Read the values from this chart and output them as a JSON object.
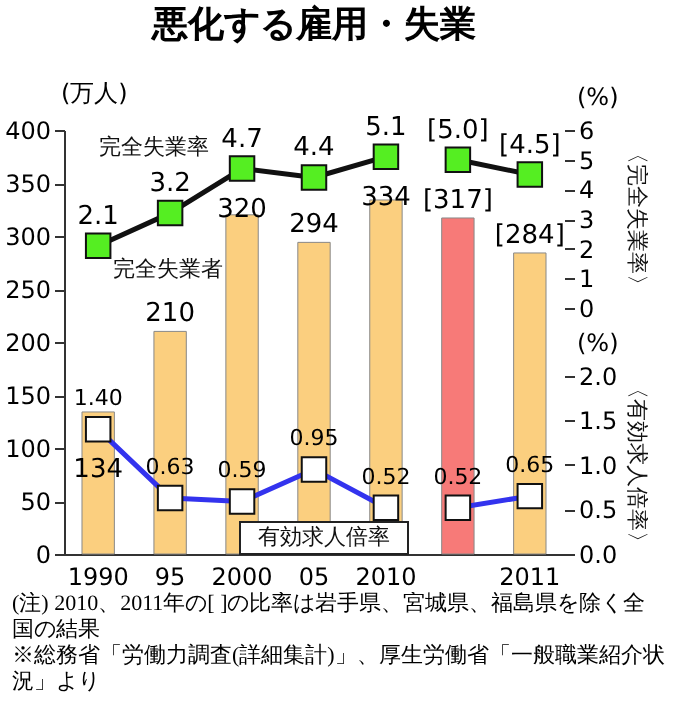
{
  "chart_data": {
    "type": "bar",
    "title": "悪化する雇用・失業",
    "categories": [
      "1990",
      "95",
      "2000",
      "05",
      "2010",
      null,
      "2011"
    ],
    "ylabel": "(万人)",
    "ylim": [
      0,
      400
    ],
    "yticks": [
      0,
      50,
      100,
      150,
      200,
      250,
      300,
      350,
      400
    ],
    "y2label": "(%)",
    "y2lim": [
      0,
      6
    ],
    "y2ticks": [
      0,
      1,
      2,
      3,
      4,
      5,
      6
    ],
    "y3label": "(%)",
    "y3lim": [
      0,
      2.0
    ],
    "y3ticks": [
      {
        "value": 0,
        "label": "0.0"
      },
      {
        "value": 0.5,
        "label": "0.5"
      },
      {
        "value": 1,
        "label": "1.0"
      },
      {
        "value": 1.5,
        "label": "1.5"
      },
      {
        "value": 2,
        "label": "2.0"
      }
    ],
    "series": [
      {
        "name": "完全失業者",
        "colors": [
          "#fbcf7f",
          "#fbcf7f",
          "#fbcf7f",
          "#fbcf7f",
          "#fbcf7f",
          "#f77a78",
          "#fbcf7f"
        ],
        "values": [
          134,
          210,
          320,
          294,
          334,
          317,
          284
        ],
        "value_labels": [
          "134",
          "210",
          "320",
          "294",
          "334",
          "[317]",
          "[284]"
        ]
      },
      {
        "name": "完全失業率",
        "type": "line",
        "axis": "y2",
        "color": "#55ee22",
        "marker": "square",
        "values": [
          2.1,
          3.2,
          4.7,
          4.4,
          5.1,
          null,
          null
        ],
        "value_labels": [
          "2.1",
          "3.2",
          "4.7",
          "4.4",
          "5.1",
          null,
          null
        ]
      },
      {
        "type": "line",
        "axis": "y2",
        "color": "#55ee22",
        "marker": "square",
        "values": [
          null,
          null,
          null,
          null,
          null,
          5.0,
          4.5
        ],
        "value_labels": [
          null,
          null,
          null,
          null,
          null,
          "[5.0]",
          "[4.5]"
        ]
      },
      {
        "name": "有効求人倍率",
        "type": "line",
        "axis": "y3",
        "color": "#3333ee",
        "marker": "square",
        "values": [
          1.4,
          0.63,
          0.59,
          0.95,
          0.52,
          null,
          null
        ],
        "value_labels": [
          "1.40",
          "0.63",
          "0.59",
          "0.95",
          "0.52",
          null,
          null
        ]
      },
      {
        "type": "line",
        "axis": "y3",
        "color": "#3333ee",
        "marker": "square",
        "values": [
          null,
          null,
          null,
          null,
          null,
          0.52,
          0.65
        ],
        "value_labels": [
          null,
          null,
          null,
          null,
          null,
          "0.52",
          "0.65"
        ]
      }
    ],
    "annotations": [
      "〈完全失業率〉",
      "〈有効求人倍率〉",
      "(注) 2010、2011年の[ ]の比率は岩手県、宮城県、福島県を除く全国の結果",
      "※総務省「労働力調査(詳細集計)」、厚生労働省「一般職業紹介状況」より"
    ],
    "grid": false
  }
}
